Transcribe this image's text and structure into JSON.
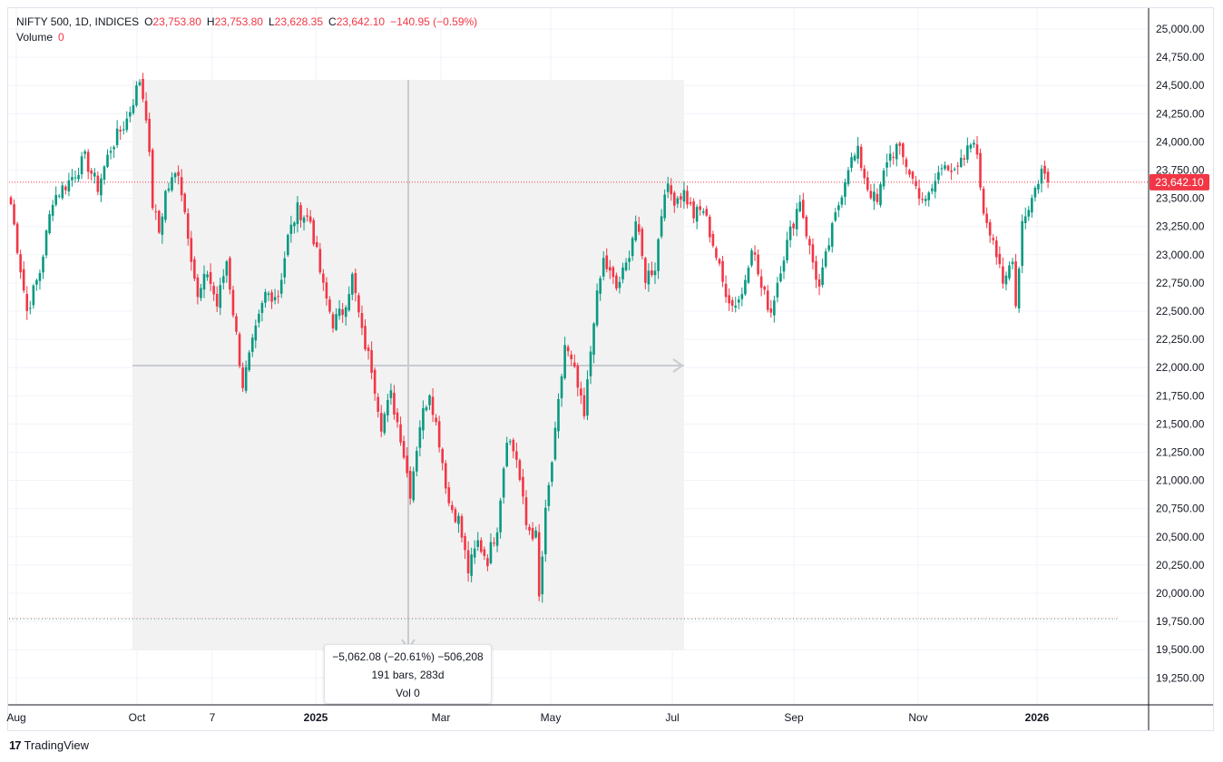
{
  "legend": {
    "symbol": "NIFTY 500, 1D, INDICES",
    "open_label": "O",
    "open_value": "23,753.80",
    "high_label": "H",
    "high_value": "23,753.80",
    "low_label": "L",
    "low_value": "23,628.35",
    "close_label": "C",
    "close_value": "23,642.10",
    "change": "−140.95 (−0.59%)",
    "volume_label": "Volume",
    "volume_value": "0"
  },
  "price_badge": "23,642.10",
  "measure_tooltip": {
    "line1": "−5,062.08 (−20.61%) −506,208",
    "line2": "191 bars, 283d",
    "line3": "Vol 0"
  },
  "branding": {
    "name": "TradingView"
  },
  "colors": {
    "up": "#089981",
    "down": "#f23645",
    "grid": "#f0f3fa",
    "measure_fill": "#f2f2f2",
    "axis_line": "#131722"
  },
  "chart_data": {
    "type": "candlestick",
    "symbol": "NIFTY 500",
    "interval": "1D",
    "ylim": [
      19050,
      25150
    ],
    "y_ticks": [
      "25,000.00",
      "24,750.00",
      "24,500.00",
      "24,250.00",
      "24,000.00",
      "23,750.00",
      "23,500.00",
      "23,250.00",
      "23,000.00",
      "22,750.00",
      "22,500.00",
      "22,250.00",
      "22,000.00",
      "21,750.00",
      "21,500.00",
      "21,250.00",
      "21,000.00",
      "20,750.00",
      "20,500.00",
      "20,250.00",
      "20,000.00",
      "19,750.00",
      "19,500.00",
      "19,250.00"
    ],
    "x_ticks": [
      "Aug",
      "Oct",
      "7",
      "2025",
      "Mar",
      "May",
      "Jul",
      "Sep",
      "Nov",
      "2026"
    ],
    "last_price": 23642.1,
    "reference_line": 19780,
    "measure": {
      "from_price": 24560,
      "to_price": 19500,
      "change": -5062.08,
      "change_pct": -20.61,
      "bars": 191,
      "days": 283
    },
    "anchors": [
      {
        "i": 0,
        "p": 23450
      },
      {
        "i": 5,
        "p": 22500
      },
      {
        "i": 9,
        "p": 22850
      },
      {
        "i": 13,
        "p": 23500
      },
      {
        "i": 18,
        "p": 23650
      },
      {
        "i": 23,
        "p": 23850
      },
      {
        "i": 27,
        "p": 23600
      },
      {
        "i": 31,
        "p": 23950
      },
      {
        "i": 36,
        "p": 24200
      },
      {
        "i": 40,
        "p": 24550
      },
      {
        "i": 42,
        "p": 24250
      },
      {
        "i": 44,
        "p": 23450
      },
      {
        "i": 46,
        "p": 23200
      },
      {
        "i": 48,
        "p": 23550
      },
      {
        "i": 52,
        "p": 23750
      },
      {
        "i": 55,
        "p": 23200
      },
      {
        "i": 58,
        "p": 22600
      },
      {
        "i": 61,
        "p": 22850
      },
      {
        "i": 64,
        "p": 22550
      },
      {
        "i": 67,
        "p": 22950
      },
      {
        "i": 69,
        "p": 22500
      },
      {
        "i": 72,
        "p": 21850
      },
      {
        "i": 75,
        "p": 22200
      },
      {
        "i": 79,
        "p": 22650
      },
      {
        "i": 83,
        "p": 22650
      },
      {
        "i": 86,
        "p": 23150
      },
      {
        "i": 89,
        "p": 23400
      },
      {
        "i": 93,
        "p": 23300
      },
      {
        "i": 97,
        "p": 22700
      },
      {
        "i": 100,
        "p": 22400
      },
      {
        "i": 103,
        "p": 22500
      },
      {
        "i": 106,
        "p": 22800
      },
      {
        "i": 109,
        "p": 22300
      },
      {
        "i": 112,
        "p": 22000
      },
      {
        "i": 115,
        "p": 21500
      },
      {
        "i": 118,
        "p": 21750
      },
      {
        "i": 121,
        "p": 21400
      },
      {
        "i": 124,
        "p": 20900
      },
      {
        "i": 127,
        "p": 21500
      },
      {
        "i": 130,
        "p": 21800
      },
      {
        "i": 133,
        "p": 21350
      },
      {
        "i": 136,
        "p": 20800
      },
      {
        "i": 139,
        "p": 20650
      },
      {
        "i": 142,
        "p": 20200
      },
      {
        "i": 145,
        "p": 20450
      },
      {
        "i": 148,
        "p": 20300
      },
      {
        "i": 151,
        "p": 20600
      },
      {
        "i": 154,
        "p": 21400
      },
      {
        "i": 157,
        "p": 21200
      },
      {
        "i": 160,
        "p": 20600
      },
      {
        "i": 163,
        "p": 20500
      },
      {
        "i": 164,
        "p": 19950
      },
      {
        "i": 166,
        "p": 20700
      },
      {
        "i": 169,
        "p": 21400
      },
      {
        "i": 172,
        "p": 22200
      },
      {
        "i": 175,
        "p": 21950
      },
      {
        "i": 178,
        "p": 21550
      },
      {
        "i": 181,
        "p": 22450
      },
      {
        "i": 184,
        "p": 22950
      },
      {
        "i": 188,
        "p": 22700
      },
      {
        "i": 191,
        "p": 22900
      },
      {
        "i": 194,
        "p": 23300
      },
      {
        "i": 197,
        "p": 22800
      },
      {
        "i": 200,
        "p": 22900
      },
      {
        "i": 203,
        "p": 23600
      },
      {
        "i": 206,
        "p": 23500
      },
      {
        "i": 209,
        "p": 23550
      },
      {
        "i": 212,
        "p": 23350
      },
      {
        "i": 215,
        "p": 23400
      },
      {
        "i": 218,
        "p": 23100
      },
      {
        "i": 221,
        "p": 22750
      },
      {
        "i": 224,
        "p": 22550
      },
      {
        "i": 227,
        "p": 22650
      },
      {
        "i": 230,
        "p": 23100
      },
      {
        "i": 233,
        "p": 22700
      },
      {
        "i": 236,
        "p": 22500
      },
      {
        "i": 239,
        "p": 22900
      },
      {
        "i": 242,
        "p": 23200
      },
      {
        "i": 245,
        "p": 23500
      },
      {
        "i": 248,
        "p": 23050
      },
      {
        "i": 251,
        "p": 22700
      },
      {
        "i": 254,
        "p": 23100
      },
      {
        "i": 257,
        "p": 23450
      },
      {
        "i": 260,
        "p": 23800
      },
      {
        "i": 263,
        "p": 23900
      },
      {
        "i": 266,
        "p": 23600
      },
      {
        "i": 269,
        "p": 23450
      },
      {
        "i": 272,
        "p": 23850
      },
      {
        "i": 275,
        "p": 23950
      },
      {
        "i": 278,
        "p": 23800
      },
      {
        "i": 281,
        "p": 23600
      },
      {
        "i": 284,
        "p": 23450
      },
      {
        "i": 287,
        "p": 23650
      },
      {
        "i": 290,
        "p": 23850
      },
      {
        "i": 293,
        "p": 23700
      },
      {
        "i": 296,
        "p": 23850
      },
      {
        "i": 299,
        "p": 24050
      },
      {
        "i": 302,
        "p": 23400
      },
      {
        "i": 305,
        "p": 23150
      },
      {
        "i": 308,
        "p": 22700
      },
      {
        "i": 311,
        "p": 23000
      },
      {
        "i": 312,
        "p": 22550
      },
      {
        "i": 314,
        "p": 23300
      },
      {
        "i": 317,
        "p": 23500
      },
      {
        "i": 320,
        "p": 23750
      },
      {
        "i": 322,
        "p": 23642
      }
    ]
  }
}
